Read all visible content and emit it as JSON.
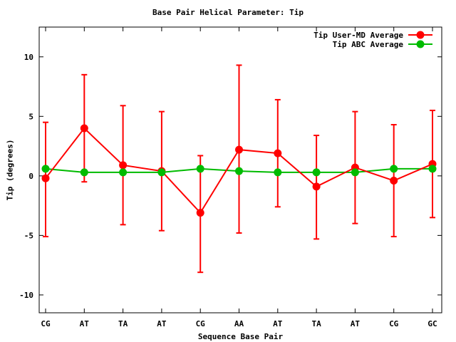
{
  "chart_data": {
    "type": "line",
    "title": "Base Pair Helical Parameter: Tip",
    "xlabel": "Sequence Base Pair",
    "ylabel": "Tip (degrees)",
    "categories": [
      "CG",
      "AT",
      "TA",
      "AT",
      "CG",
      "AA",
      "AT",
      "TA",
      "AT",
      "CG",
      "GC"
    ],
    "ylim": [
      -11.5,
      12.5
    ],
    "yticks": [
      -10,
      -5,
      0,
      5,
      10
    ],
    "grid": false,
    "legend_position": "top-right",
    "series": [
      {
        "name": "Tip User-MD Average",
        "color": "#ff0000",
        "values": [
          -0.2,
          4.0,
          0.9,
          0.4,
          -3.1,
          2.2,
          1.9,
          -0.9,
          0.7,
          -0.4,
          1.0
        ],
        "error_low": [
          -5.1,
          -0.5,
          -4.1,
          -4.6,
          -8.1,
          -4.8,
          -2.6,
          -5.3,
          -4.0,
          -5.1,
          -3.5
        ],
        "error_high": [
          4.5,
          8.5,
          5.9,
          5.4,
          1.7,
          9.3,
          6.4,
          3.4,
          5.4,
          4.3,
          5.5
        ]
      },
      {
        "name": "Tip ABC Average",
        "color": "#00bb00",
        "values": [
          0.6,
          0.3,
          0.3,
          0.3,
          0.6,
          0.4,
          0.3,
          0.3,
          0.3,
          0.6,
          0.6
        ]
      }
    ]
  }
}
